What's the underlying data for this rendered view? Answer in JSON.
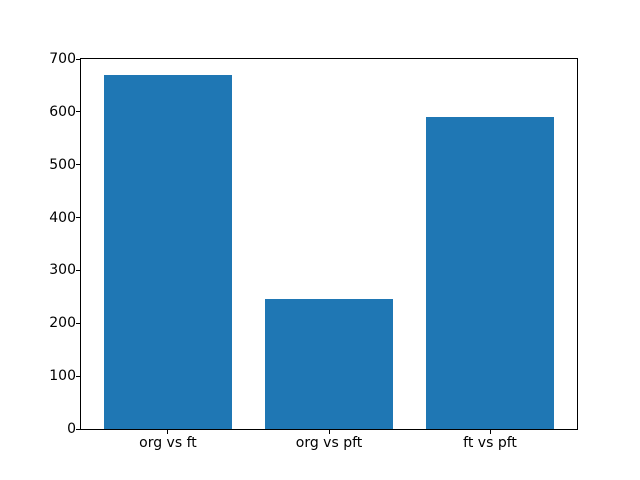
{
  "chart_data": {
    "type": "bar",
    "categories": [
      "org vs ft",
      "org vs pft",
      "ft vs pft"
    ],
    "values": [
      670,
      246,
      590
    ],
    "title": "",
    "xlabel": "",
    "ylabel": "",
    "ylim": [
      0,
      700
    ],
    "yticks": [
      0,
      100,
      200,
      300,
      400,
      500,
      600,
      700
    ],
    "bar_color": "#1f77b4",
    "axis_color": "#000000",
    "background_color": "#ffffff",
    "grid": false,
    "legend": null
  }
}
